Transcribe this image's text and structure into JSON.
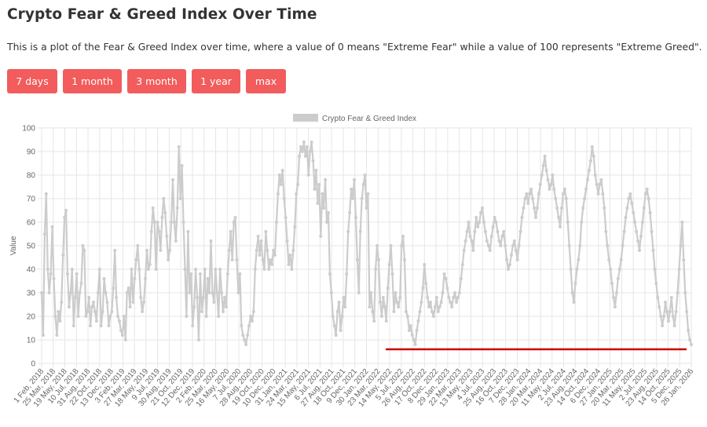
{
  "header": {
    "title": "Crypto Fear & Greed Index Over Time",
    "description": "This is a plot of the Fear & Greed Index over time, where a value of 0 means \"Extreme Fear\" while a value of 100 represents \"Extreme Greed\"."
  },
  "range_buttons": [
    {
      "label": "7 days"
    },
    {
      "label": "1 month"
    },
    {
      "label": "3 month"
    },
    {
      "label": "1 year"
    },
    {
      "label": "max"
    }
  ],
  "colors": {
    "button": "#f25c5c",
    "series": "#cccccc",
    "annotation": "#cc0000",
    "grid": "#e6e6e6"
  },
  "chart_data": {
    "type": "line",
    "legend": "Crypto Fear & Greed Index",
    "legend_position": "top",
    "ylabel": "Value",
    "xlabel": "",
    "ylim": [
      0,
      100
    ],
    "y_ticks": [
      0,
      10,
      20,
      30,
      40,
      50,
      60,
      70,
      80,
      90,
      100
    ],
    "grid": true,
    "x_tick_labels": [
      "1 Feb, 2018",
      "25 Mar, 2018",
      "19 May, 2018",
      "10 Jul, 2018",
      "31 Aug, 2018",
      "22 Oct, 2018",
      "13 Dec, 2018",
      "3 Feb, 2019",
      "27 Mar, 2019",
      "18 May, 2019",
      "9 Jul, 2019",
      "30 Aug, 2019",
      "21 Oct, 2019",
      "12 Dec, 2019",
      "2 Feb, 2020",
      "25 Mar, 2020",
      "16 May, 2020",
      "7 Jul, 2020",
      "28 Aug, 2020",
      "19 Oct, 2020",
      "10 Dec, 2020",
      "31 Jan, 2021",
      "24 Mar, 2021",
      "15 May, 2021",
      "6 Jul, 2021",
      "27 Aug, 2021",
      "18 Oct, 2021",
      "9 Dec, 2021",
      "30 Jan, 2022",
      "23 Mar, 2022",
      "14 May, 2022",
      "5 Jul, 2022",
      "26 Aug, 2022",
      "17 Oct, 2022",
      "8 Dec, 2022",
      "29 Jan, 2023",
      "22 Mar, 2023",
      "13 May, 2023",
      "4 Jul, 2023",
      "25 Aug, 2023",
      "16 Oct, 2023",
      "7 Dec, 2023",
      "28 Jan, 2024",
      "20 Mar, 2024",
      "11 May, 2024",
      "2 Jul, 2024",
      "23 Aug, 2024",
      "14 Oct, 2024",
      "6 Dec, 2024",
      "27 Jan, 2025",
      "20 Mar, 2025",
      "11 May, 2025",
      "2 Jul, 2025",
      "23 Aug, 2025",
      "14 Oct, 2025",
      "5 Dec, 2025",
      "26 Jan, 2026"
    ],
    "series": [
      {
        "name": "Crypto Fear & Greed Index",
        "values": [
          30,
          12,
          55,
          72,
          40,
          30,
          38,
          58,
          36,
          20,
          12,
          22,
          18,
          26,
          46,
          62,
          65,
          38,
          24,
          30,
          40,
          16,
          28,
          38,
          20,
          30,
          34,
          50,
          48,
          20,
          22,
          28,
          16,
          24,
          26,
          22,
          18,
          30,
          40,
          16,
          22,
          36,
          30,
          26,
          16,
          20,
          22,
          32,
          48,
          28,
          20,
          18,
          14,
          12,
          20,
          10,
          30,
          32,
          24,
          40,
          26,
          36,
          44,
          50,
          40,
          28,
          22,
          26,
          36,
          48,
          40,
          42,
          56,
          66,
          60,
          40,
          60,
          56,
          48,
          62,
          70,
          64,
          54,
          44,
          48,
          60,
          78,
          60,
          52,
          66,
          92,
          70,
          84,
          60,
          40,
          20,
          56,
          30,
          38,
          16,
          24,
          40,
          28,
          10,
          38,
          22,
          28,
          40,
          20,
          36,
          30,
          52,
          30,
          26,
          40,
          30,
          20,
          40,
          30,
          22,
          28,
          24,
          38,
          48,
          56,
          44,
          60,
          62,
          44,
          30,
          38,
          16,
          12,
          10,
          8,
          12,
          16,
          20,
          18,
          22,
          40,
          48,
          54,
          46,
          52,
          44,
          40,
          56,
          48,
          40,
          44,
          42,
          48,
          46,
          60,
          72,
          80,
          76,
          82,
          70,
          62,
          52,
          42,
          46,
          40,
          48,
          58,
          72,
          76,
          88,
          92,
          90,
          94,
          88,
          92,
          80,
          90,
          94,
          86,
          74,
          82,
          68,
          76,
          54,
          72,
          66,
          78,
          60,
          64,
          38,
          30,
          20,
          16,
          12,
          22,
          26,
          14,
          20,
          28,
          24,
          38,
          56,
          64,
          74,
          70,
          78,
          62,
          44,
          30,
          56,
          70,
          76,
          80,
          66,
          72,
          24,
          30,
          22,
          18,
          40,
          50,
          44,
          26,
          20,
          28,
          24,
          18,
          32,
          42,
          50,
          38,
          22,
          30,
          26,
          24,
          28,
          50,
          54,
          44,
          22,
          20,
          14,
          16,
          12,
          10,
          8,
          14,
          18,
          22,
          26,
          32,
          42,
          34,
          28,
          24,
          26,
          22,
          20,
          24,
          28,
          22,
          24,
          26,
          30,
          38,
          36,
          32,
          28,
          26,
          24,
          28,
          30,
          26,
          28,
          30,
          36,
          42,
          48,
          52,
          56,
          60,
          54,
          52,
          48,
          56,
          62,
          58,
          60,
          64,
          66,
          60,
          56,
          52,
          50,
          48,
          54,
          58,
          62,
          60,
          56,
          52,
          50,
          54,
          56,
          50,
          44,
          40,
          42,
          46,
          50,
          52,
          48,
          44,
          50,
          56,
          62,
          66,
          70,
          72,
          68,
          72,
          74,
          70,
          66,
          62,
          66,
          72,
          76,
          80,
          84,
          88,
          82,
          78,
          74,
          76,
          80,
          74,
          70,
          66,
          62,
          58,
          66,
          72,
          74,
          70,
          60,
          50,
          40,
          30,
          26,
          34,
          40,
          44,
          50,
          60,
          66,
          70,
          74,
          78,
          82,
          86,
          92,
          88,
          80,
          76,
          72,
          76,
          78,
          72,
          66,
          56,
          50,
          44,
          40,
          34,
          28,
          24,
          30,
          36,
          40,
          44,
          50,
          56,
          62,
          66,
          70,
          72,
          68,
          64,
          60,
          56,
          52,
          48,
          54,
          60,
          66,
          72,
          74,
          70,
          64,
          56,
          48,
          40,
          34,
          28,
          24,
          20,
          16,
          20,
          26,
          22,
          18,
          22,
          28,
          20,
          16,
          22,
          30,
          40,
          50,
          60,
          44,
          30,
          22,
          14,
          10,
          8
        ]
      }
    ],
    "annotation": {
      "type": "horizontal-line",
      "y": 6,
      "from_category": "14 May, 2022",
      "to_category": "26 Jan, 2026",
      "color": "#cc0000"
    }
  }
}
